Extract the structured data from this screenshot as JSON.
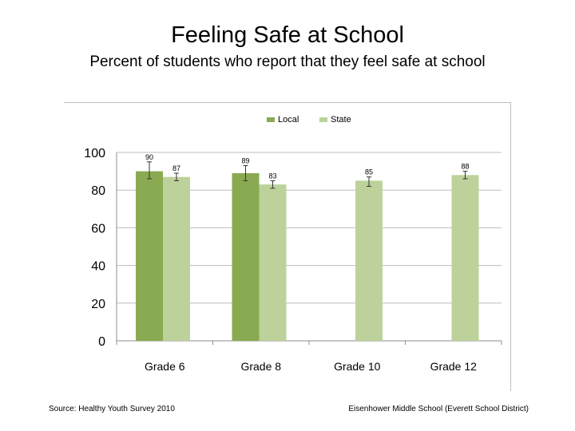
{
  "slide": {
    "title": "Feeling Safe at School",
    "subtitle": "Percent of students who report that they feel safe at school",
    "source": "Source: Healthy Youth Survey 2010",
    "school": "Eisenhower Middle School (Everett School District)"
  },
  "chart_data": {
    "type": "bar",
    "title": "Percent of students who report that they feel safe at school",
    "xlabel": "",
    "ylabel": "",
    "ylim": [
      0,
      100
    ],
    "yticks": [
      0,
      20,
      40,
      60,
      80,
      100
    ],
    "grid": true,
    "legend_position": "top",
    "categories": [
      "Grade 6",
      "Grade 8",
      "Grade 10",
      "Grade 12"
    ],
    "series": [
      {
        "name": "Local",
        "color": "#8aaa52",
        "values": [
          90,
          89,
          null,
          null
        ],
        "labels": [
          "90",
          "89",
          null,
          null
        ],
        "error": [
          [
            86,
            95
          ],
          [
            85,
            93
          ],
          null,
          null
        ]
      },
      {
        "name": "State",
        "color": "#bcd29a",
        "values": [
          87,
          83,
          85,
          88
        ],
        "labels": [
          "87",
          "83",
          "85",
          "88"
        ],
        "error": [
          [
            85,
            89
          ],
          [
            81,
            85
          ],
          [
            82,
            87
          ],
          [
            86,
            90
          ]
        ]
      }
    ]
  }
}
